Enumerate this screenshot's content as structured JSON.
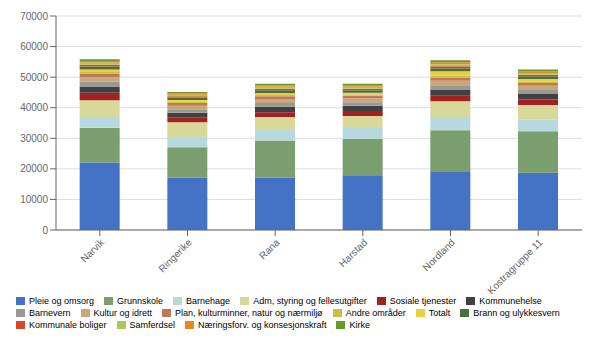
{
  "chart_data": {
    "type": "bar",
    "stacked": true,
    "grid": true,
    "legend": "bottom",
    "categories": [
      "Narvik",
      "Ringerike",
      "Rana",
      "Harstad",
      "Nordland",
      "Kostragruppe 11"
    ],
    "series": [
      {
        "name": "Pleie og omsorg",
        "color": "#4472C4",
        "values": [
          22068,
          17089,
          17195,
          17633,
          19184,
          18765
        ]
      },
      {
        "name": "Grunnskole",
        "color": "#7A9E6E",
        "values": [
          11395,
          9969,
          12042,
          12191,
          13449,
          13500
        ]
      },
      {
        "name": "Barnehage",
        "color": "#B8D8E0",
        "values": [
          3500,
          3000,
          3500,
          3500,
          4000,
          3800
        ]
      },
      {
        "name": "Adm, styring og fellesutgifter",
        "color": "#D8D898",
        "values": [
          5500,
          5200,
          4200,
          4000,
          5500,
          4800
        ]
      },
      {
        "name": "Sosiale tjenester",
        "color": "#A52020",
        "values": [
          2400,
          1600,
          1600,
          1600,
          1800,
          1800
        ]
      },
      {
        "name": "Kommunehelse",
        "color": "#404040",
        "values": [
          2100,
          1500,
          1800,
          1700,
          2000,
          1800
        ]
      },
      {
        "name": "Barnevern",
        "color": "#989898",
        "values": [
          1500,
          1100,
          1200,
          1200,
          1400,
          1300
        ]
      },
      {
        "name": "Kultur og idrett",
        "color": "#C8A878",
        "values": [
          1500,
          1200,
          1300,
          1300,
          1500,
          1400
        ]
      },
      {
        "name": "Plan, kulturminner, natur og nærmiljø",
        "color": "#C07858",
        "values": [
          1200,
          900,
          900,
          800,
          1000,
          900
        ]
      },
      {
        "name": "Andre områder",
        "color": "#C8C048",
        "values": [
          500,
          400,
          400,
          400,
          600,
          500
        ]
      },
      {
        "name": "Totalt",
        "color": "#E8D040",
        "values": [
          800,
          600,
          700,
          600,
          1500,
          800
        ]
      },
      {
        "name": "Brann og ulykkesvern",
        "color": "#4A7040",
        "values": [
          1000,
          800,
          900,
          800,
          1000,
          900
        ]
      },
      {
        "name": "Kommunale boliger",
        "color": "#D84828",
        "values": [
          600,
          400,
          500,
          500,
          600,
          500
        ]
      },
      {
        "name": "Samferdsel",
        "color": "#A8C858",
        "values": [
          700,
          500,
          600,
          600,
          700,
          600
        ]
      },
      {
        "name": "Næringsforv. og konsesjonskraft",
        "color": "#E88820",
        "values": [
          500,
          400,
          400,
          400,
          600,
          500
        ]
      },
      {
        "name": "Kirke",
        "color": "#6A9830",
        "values": [
          600,
          500,
          600,
          600,
          700,
          600
        ]
      }
    ],
    "ylim": [
      0,
      70000
    ],
    "yticks": [
      0,
      10000,
      20000,
      30000,
      40000,
      50000,
      60000,
      70000
    ]
  }
}
